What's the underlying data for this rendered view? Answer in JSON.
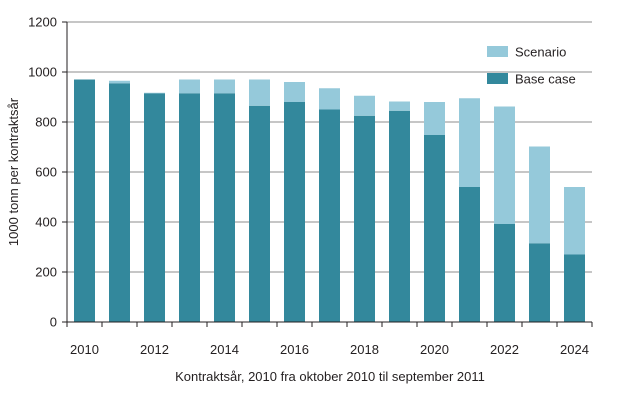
{
  "chart_data": {
    "type": "bar",
    "stacked": true,
    "title": "",
    "xlabel": "Kontraktsår, 2010 fra oktober 2010 til september 2011",
    "ylabel": "1000 tonn per kontraktsår",
    "ylim": [
      0,
      1200
    ],
    "yticks": [
      0,
      200,
      400,
      600,
      800,
      1000,
      1200
    ],
    "grid": "horizontal",
    "legend_position": "top-right",
    "categories": [
      2010,
      2011,
      2012,
      2013,
      2014,
      2015,
      2016,
      2017,
      2018,
      2019,
      2020,
      2021,
      2022,
      2023,
      2024
    ],
    "xtick_labels": [
      "2010",
      "2012",
      "2014",
      "2016",
      "2018",
      "2020",
      "2022",
      "2024"
    ],
    "series": [
      {
        "name": "Base case",
        "color": "#33889c",
        "values": [
          970,
          955,
          915,
          915,
          915,
          865,
          880,
          850,
          825,
          845,
          748,
          540,
          392,
          315,
          270
        ]
      },
      {
        "name": "Scenario",
        "color": "#95c9da",
        "values": [
          0,
          10,
          2,
          55,
          55,
          105,
          80,
          85,
          80,
          37,
          132,
          355,
          470,
          387,
          270
        ]
      }
    ],
    "legend_order": [
      "Scenario",
      "Base case"
    ]
  }
}
